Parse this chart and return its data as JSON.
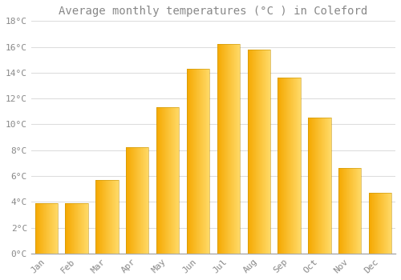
{
  "title": "Average monthly temperatures (°C ) in Coleford",
  "months": [
    "Jan",
    "Feb",
    "Mar",
    "Apr",
    "May",
    "Jun",
    "Jul",
    "Aug",
    "Sep",
    "Oct",
    "Nov",
    "Dec"
  ],
  "values": [
    3.9,
    3.9,
    5.7,
    8.2,
    11.3,
    14.3,
    16.2,
    15.8,
    13.6,
    10.5,
    6.6,
    4.7
  ],
  "bar_color_left": "#F5A800",
  "bar_color_right": "#FFD966",
  "background_color": "#FFFFFF",
  "grid_color": "#DDDDDD",
  "text_color": "#888888",
  "ylim": [
    0,
    18
  ],
  "yticks": [
    0,
    2,
    4,
    6,
    8,
    10,
    12,
    14,
    16,
    18
  ],
  "title_fontsize": 10,
  "tick_fontsize": 8,
  "bar_width": 0.75
}
